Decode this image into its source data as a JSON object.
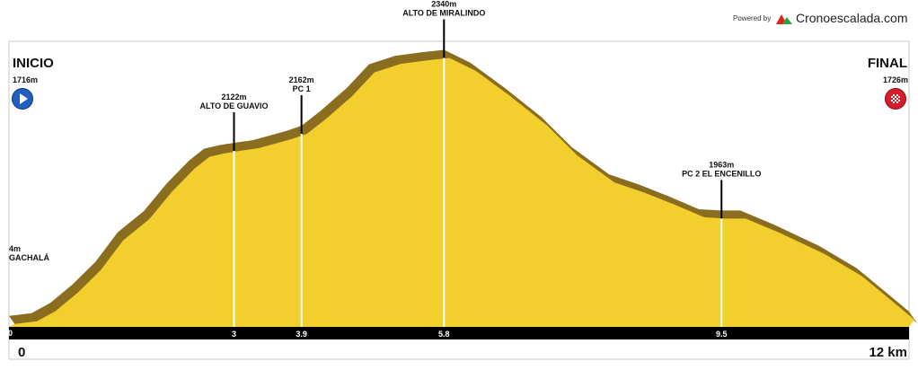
{
  "branding": {
    "powered_label": "Powered by",
    "brand_name": "Cronoescalada.com",
    "logo_icon": "mountain-logo-icon",
    "logo_colors": [
      "#e2231a",
      "#2f9e44",
      "#555555"
    ]
  },
  "start": {
    "title": "INICIO",
    "elevation": "1716m",
    "icon": "play-icon",
    "icon_color": "#1f5fbf"
  },
  "finish": {
    "title": "FINAL",
    "elevation": "1726m",
    "icon": "checkered-flag-icon",
    "icon_color": "#d71d2a"
  },
  "left_cut_label": {
    "elevation": "4m",
    "name": "GACHALÁ"
  },
  "axis": {
    "start_label": "0",
    "end_label": "12 km",
    "left_cut_tick": "0"
  },
  "colors": {
    "fill": "#f2cf2c",
    "shadow": "#8a6d1e",
    "axis_bar": "#000000",
    "marker_line": "#ffffff",
    "frame": "#c8c8c8"
  },
  "chart_data": {
    "type": "area",
    "x_unit": "km",
    "y_unit": "m",
    "xlim": [
      0,
      12
    ],
    "ylim": [
      1690,
      2360
    ],
    "profile": [
      [
        0,
        1716
      ],
      [
        0.3,
        1722
      ],
      [
        0.55,
        1746
      ],
      [
        0.85,
        1790
      ],
      [
        1.15,
        1842
      ],
      [
        1.45,
        1912
      ],
      [
        1.8,
        1962
      ],
      [
        2.1,
        2026
      ],
      [
        2.4,
        2080
      ],
      [
        2.6,
        2108
      ],
      [
        2.8,
        2116
      ],
      [
        3.0,
        2122
      ],
      [
        3.25,
        2128
      ],
      [
        3.5,
        2140
      ],
      [
        3.7,
        2150
      ],
      [
        3.9,
        2162
      ],
      [
        4.15,
        2196
      ],
      [
        4.5,
        2250
      ],
      [
        4.8,
        2306
      ],
      [
        5.15,
        2326
      ],
      [
        5.5,
        2334
      ],
      [
        5.8,
        2340
      ],
      [
        6.15,
        2310
      ],
      [
        6.6,
        2252
      ],
      [
        7.1,
        2182
      ],
      [
        7.5,
        2112
      ],
      [
        8.0,
        2048
      ],
      [
        8.4,
        2024
      ],
      [
        8.8,
        1996
      ],
      [
        9.2,
        1966
      ],
      [
        9.5,
        1963
      ],
      [
        9.75,
        1963
      ],
      [
        10.2,
        1930
      ],
      [
        10.8,
        1880
      ],
      [
        11.3,
        1828
      ],
      [
        11.7,
        1770
      ],
      [
        12,
        1726
      ]
    ],
    "markers": [
      {
        "km": 3.0,
        "tick": "3",
        "elevation": 2122,
        "elevation_label": "2122m",
        "name": "ALTO DE GUAVIO"
      },
      {
        "km": 3.9,
        "tick": "3.9",
        "elevation": 2162,
        "elevation_label": "2162m",
        "name": "PC 1"
      },
      {
        "km": 5.8,
        "tick": "5.8",
        "elevation": 2340,
        "elevation_label": "2340m",
        "name": "ALTO DE MIRALINDO"
      },
      {
        "km": 9.5,
        "tick": "9.5",
        "elevation": 1963,
        "elevation_label": "1963m",
        "name": "PC 2 EL ENCENILLO"
      }
    ]
  }
}
